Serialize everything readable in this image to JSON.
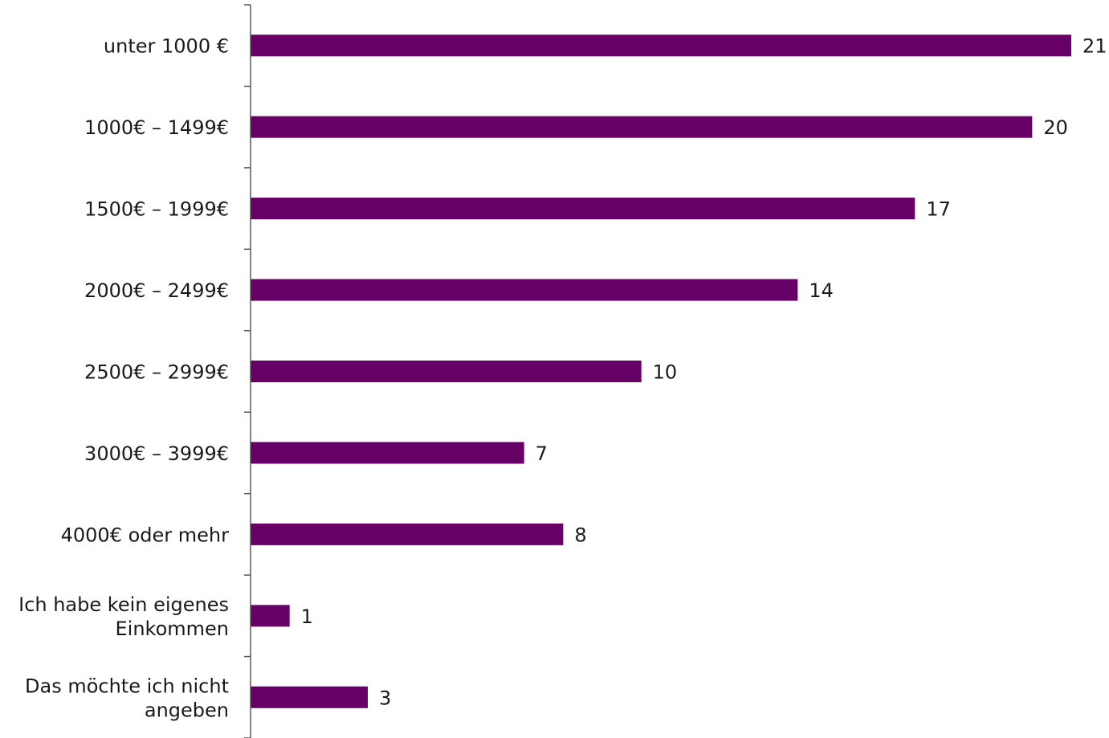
{
  "chart_data": {
    "type": "bar",
    "orientation": "horizontal",
    "categories": [
      [
        "unter 1000 €"
      ],
      [
        "1000€ – 1499€"
      ],
      [
        "1500€ – 1999€"
      ],
      [
        "2000€ – 2499€"
      ],
      [
        "2500€ – 2999€"
      ],
      [
        "3000€ – 3999€"
      ],
      [
        "4000€ oder mehr"
      ],
      [
        "Ich habe kein eigenes",
        "Einkommen"
      ],
      [
        "Das möchte ich nicht",
        "angeben"
      ]
    ],
    "values": [
      21,
      20,
      17,
      14,
      10,
      7,
      8,
      1,
      3
    ],
    "bar_color": "#660066",
    "xlim": [
      0,
      21
    ],
    "grid": false,
    "legend": "none",
    "data_labels": true
  }
}
